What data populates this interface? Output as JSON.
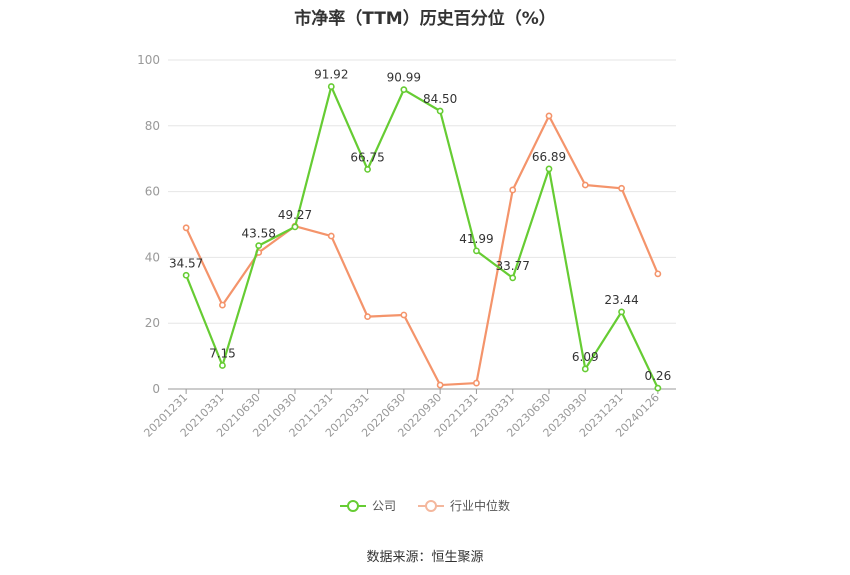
{
  "chart_data": {
    "type": "line",
    "title": "市净率（TTM）历史百分位（%）",
    "categories": [
      "20201231",
      "20210331",
      "20210630",
      "20210930",
      "20211231",
      "20220331",
      "20220630",
      "20220930",
      "20221231",
      "20230331",
      "20230630",
      "20230930",
      "20231231",
      "20240126"
    ],
    "series": [
      {
        "name": "公司",
        "color": "#66cc33",
        "values": [
          34.57,
          7.15,
          43.58,
          49.27,
          91.92,
          66.75,
          90.99,
          84.5,
          41.99,
          33.77,
          66.89,
          6.09,
          23.44,
          0.26
        ],
        "labels": [
          "34.57",
          "7.15",
          "43.58",
          "49.27",
          "91.92",
          "66.75",
          "90.99",
          "84.50",
          "41.99",
          "33.77",
          "66.89",
          "6.09",
          "23.44",
          "0.26"
        ]
      },
      {
        "name": "行业中位数",
        "color": "#f4946b",
        "values": [
          49,
          25.5,
          41.5,
          49.5,
          46.5,
          22,
          22.5,
          1.2,
          1.8,
          60.5,
          83,
          62,
          61,
          35
        ]
      }
    ],
    "ylim": [
      0,
      100
    ],
    "yticks": [
      0,
      20,
      40,
      60,
      80,
      100
    ],
    "grid": true,
    "legend": "bottom"
  },
  "source": "数据来源：恒生聚源"
}
